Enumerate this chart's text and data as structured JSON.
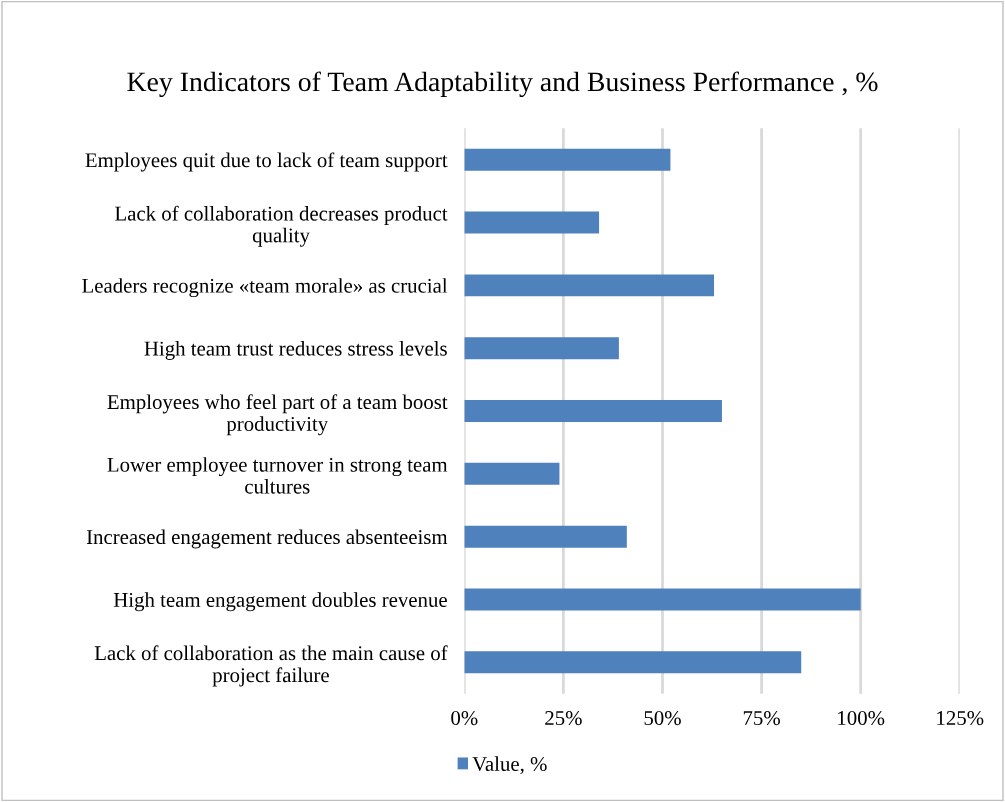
{
  "chart_data": {
    "type": "bar",
    "orientation": "horizontal",
    "title": "Key Indicators of Team Adaptability and Business Performance , %",
    "categories": [
      "Employees quit due to lack of team support",
      "Lack of collaboration decreases product quality",
      "Leaders recognize «team morale» as crucial",
      "High team trust reduces stress levels",
      "Employees who feel part of a team boost productivity",
      "Lower employee turnover in strong team cultures",
      "Increased engagement reduces absenteeism",
      "High team engagement doubles revenue",
      "Lack of collaboration as the main cause of project failure"
    ],
    "series": [
      {
        "name": "Value, %",
        "color": "#4f81bd",
        "values": [
          52,
          34,
          63,
          39,
          65,
          24,
          41,
          100,
          85
        ]
      }
    ],
    "xlim": [
      0,
      125
    ],
    "xticks": [
      {
        "value": 0,
        "label": "0%"
      },
      {
        "value": 25,
        "label": "25%"
      },
      {
        "value": 50,
        "label": "50%"
      },
      {
        "value": 75,
        "label": "75%"
      },
      {
        "value": 100,
        "label": "100%"
      },
      {
        "value": 125,
        "label": "125%"
      }
    ],
    "grid": "x",
    "legend": "bottom"
  }
}
